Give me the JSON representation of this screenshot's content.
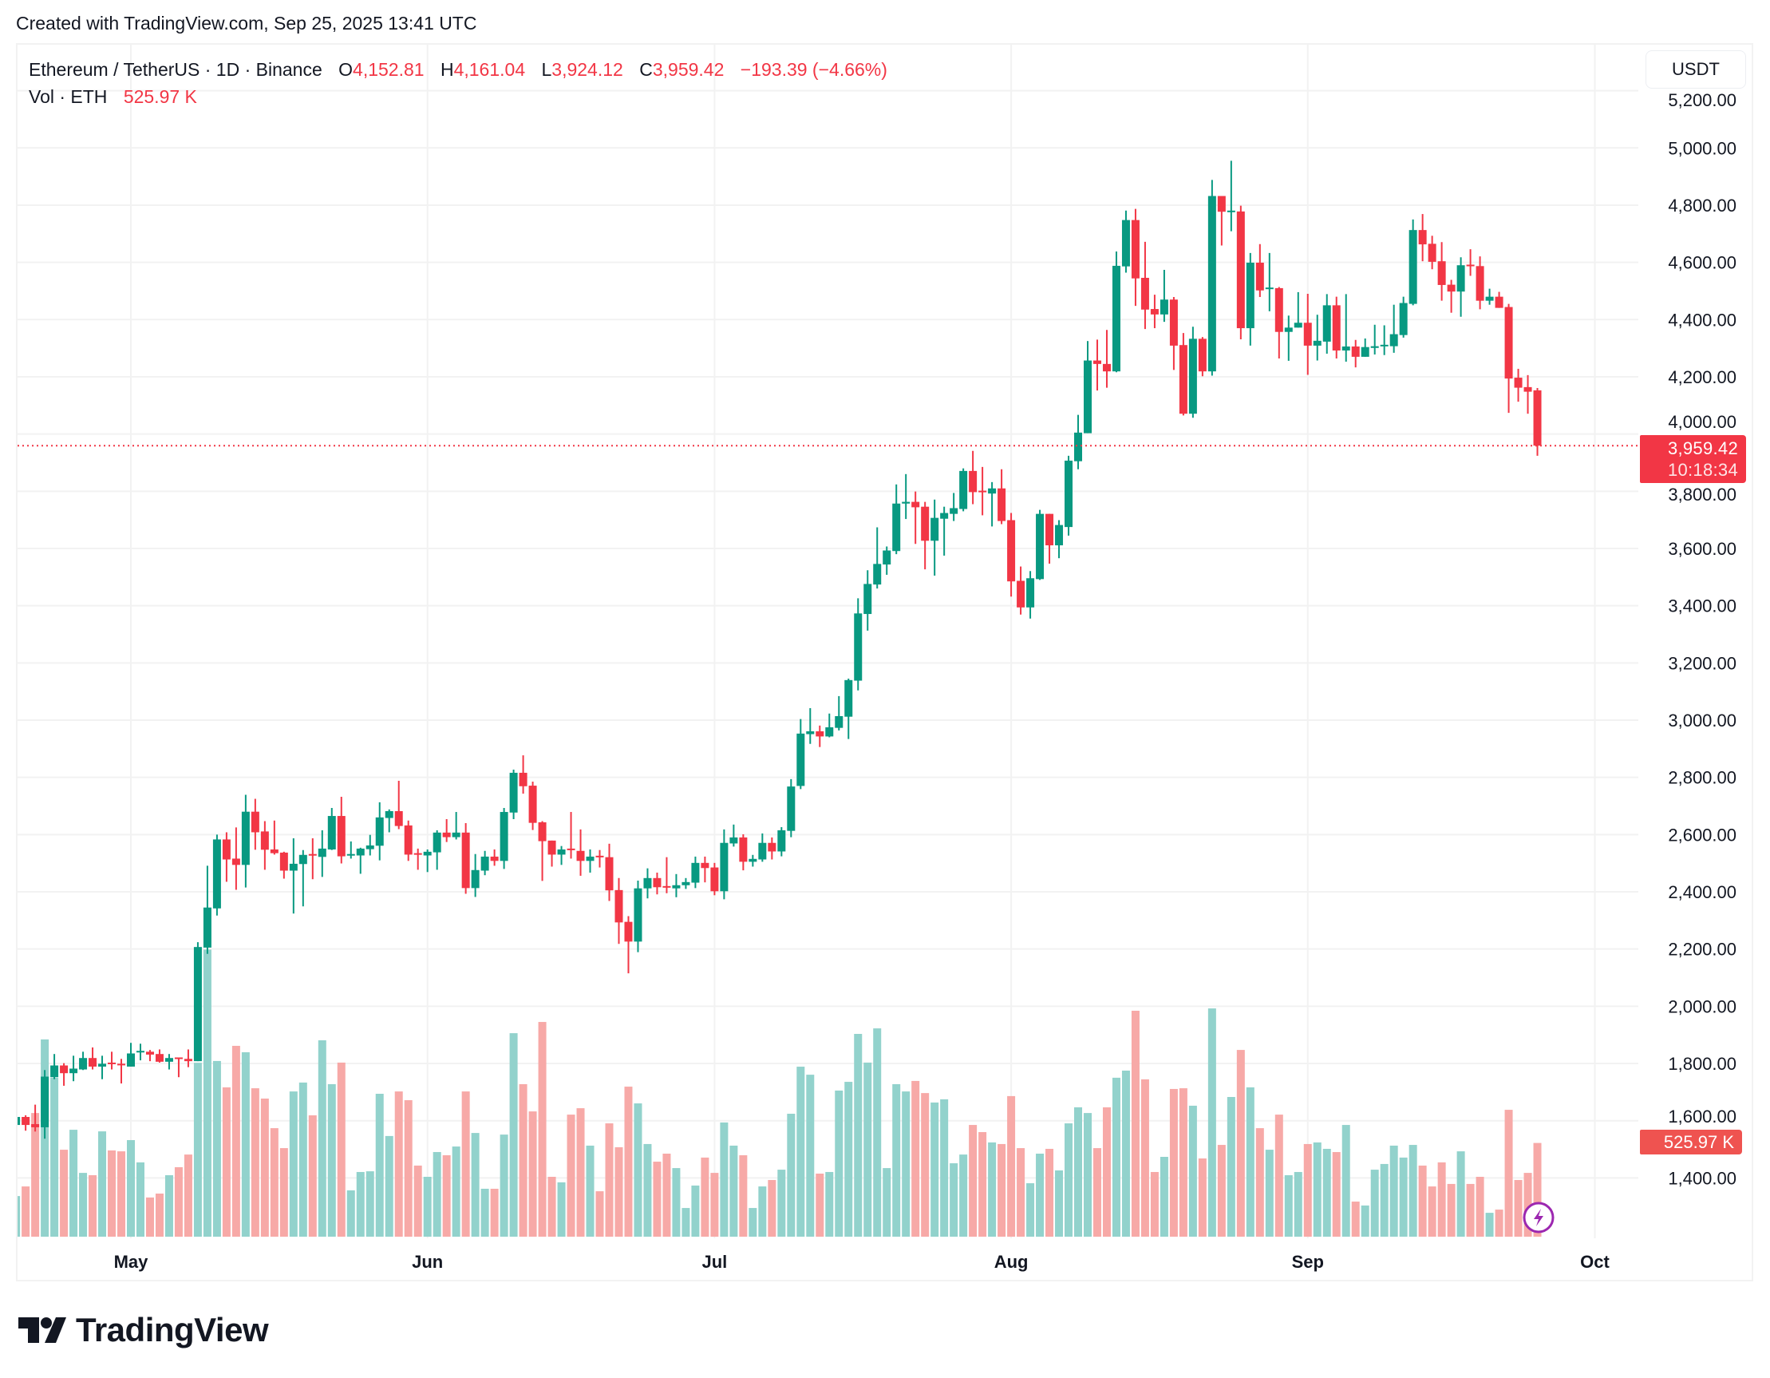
{
  "watermark_text": "Created with TradingView.com, Sep 25, 2025 13:41 UTC",
  "legend": {
    "symbol": "Ethereum / TetherUS · 1D · Binance",
    "open_label": "O",
    "open": "4,152.81",
    "high_label": "H",
    "high": "4,161.04",
    "low_label": "L",
    "low": "3,924.12",
    "close_label": "C",
    "close": "3,959.42",
    "change": "−193.39 (−4.66%)",
    "volume_label": "Vol · ETH",
    "volume": "525.97 K"
  },
  "currency_button": "USDT",
  "last_price": {
    "price": "3,959.42",
    "countdown": "10:18:34",
    "value": 3959.42
  },
  "volume_tag": "525.97 K",
  "logo_text": "TradingView",
  "icons": {
    "lightning": "lightning-bolt-icon",
    "logo": "tradingview-logo-icon"
  },
  "colors": {
    "up": "#089981",
    "down": "#F23645",
    "volume_up": "#92d2cc",
    "volume_down": "#f7a9a7",
    "last_price": "#F23645",
    "volume_tag": "#EF5350",
    "lightning": "#9C27B0"
  },
  "chart_data": {
    "type": "candlestick",
    "title": "",
    "interval": "1D",
    "y_ticks": [
      5200,
      5000,
      4800,
      4600,
      4400,
      4200,
      4000,
      3800,
      3600,
      3400,
      3200,
      3000,
      2800,
      2600,
      2400,
      2200,
      2000,
      1800,
      1600,
      1400
    ],
    "y_tick_labels": [
      "5,200.00",
      "5,000.00",
      "4,800.00",
      "4,600.00",
      "4,400.00",
      "4,200.00",
      "4,000.00",
      "3,800.00",
      "3,600.00",
      "3,400.00",
      "3,200.00",
      "3,000.00",
      "2,800.00",
      "2,600.00",
      "2,400.00",
      "2,200.00",
      "2,000.00",
      "1,800.00",
      "1,600.00",
      "1,400.00"
    ],
    "x_ticks": [
      {
        "label": "May",
        "date": "2025-05-01"
      },
      {
        "label": "Jun",
        "date": "2025-06-01"
      },
      {
        "label": "Jul",
        "date": "2025-07-01"
      },
      {
        "label": "Aug",
        "date": "2025-08-01"
      },
      {
        "label": "Sep",
        "date": "2025-09-01"
      },
      {
        "label": "Oct",
        "date": "2025-10-01"
      }
    ],
    "grid": true,
    "volume_unit": "K ETH",
    "candle_fields": [
      "date",
      "open",
      "high",
      "low",
      "close",
      "volume"
    ],
    "candles": [
      [
        "2025-04-19",
        1585,
        1620,
        1580,
        1613,
        228
      ],
      [
        "2025-04-20",
        1613,
        1619,
        1565,
        1585,
        282
      ],
      [
        "2025-04-21",
        1588,
        1656,
        1562,
        1577,
        694
      ],
      [
        "2025-04-22",
        1577,
        1777,
        1537,
        1754,
        1107
      ],
      [
        "2025-04-23",
        1752,
        1833,
        1745,
        1793,
        892
      ],
      [
        "2025-04-24",
        1793,
        1801,
        1722,
        1766,
        488
      ],
      [
        "2025-04-25",
        1766,
        1827,
        1738,
        1782,
        600
      ],
      [
        "2025-04-26",
        1779,
        1841,
        1777,
        1819,
        358
      ],
      [
        "2025-04-27",
        1819,
        1856,
        1779,
        1789,
        345
      ],
      [
        "2025-04-28",
        1789,
        1827,
        1745,
        1799,
        591
      ],
      [
        "2025-04-29",
        1803,
        1841,
        1779,
        1799,
        484
      ],
      [
        "2025-04-30",
        1799,
        1816,
        1730,
        1794,
        479
      ],
      [
        "2025-05-01",
        1789,
        1872,
        1789,
        1835,
        542
      ],
      [
        "2025-05-02",
        1839,
        1869,
        1811,
        1844,
        417
      ],
      [
        "2025-05-03",
        1841,
        1847,
        1808,
        1831,
        220
      ],
      [
        "2025-05-04",
        1833,
        1849,
        1803,
        1806,
        242
      ],
      [
        "2025-05-05",
        1806,
        1833,
        1779,
        1819,
        345
      ],
      [
        "2025-05-06",
        1821,
        1821,
        1752,
        1817,
        390
      ],
      [
        "2025-05-07",
        1816,
        1849,
        1787,
        1808,
        461
      ],
      [
        "2025-05-08",
        1808,
        2224,
        1808,
        2207,
        976
      ],
      [
        "2025-05-09",
        2205,
        2491,
        2183,
        2345,
        1611
      ],
      [
        "2025-05-10",
        2342,
        2600,
        2317,
        2583,
        986
      ],
      [
        "2025-05-11",
        2583,
        2608,
        2435,
        2513,
        838
      ],
      [
        "2025-05-12",
        2516,
        2625,
        2407,
        2494,
        1071
      ],
      [
        "2025-05-13",
        2494,
        2739,
        2415,
        2680,
        1035
      ],
      [
        "2025-05-14",
        2680,
        2725,
        2547,
        2608,
        833
      ],
      [
        "2025-05-15",
        2611,
        2647,
        2477,
        2547,
        775
      ],
      [
        "2025-05-16",
        2548,
        2649,
        2530,
        2535,
        609
      ],
      [
        "2025-05-17",
        2537,
        2540,
        2446,
        2474,
        497
      ],
      [
        "2025-05-18",
        2474,
        2587,
        2324,
        2498,
        815
      ],
      [
        "2025-05-19",
        2497,
        2546,
        2349,
        2529,
        865
      ],
      [
        "2025-05-20",
        2532,
        2587,
        2444,
        2527,
        681
      ],
      [
        "2025-05-21",
        2522,
        2615,
        2452,
        2551,
        1102
      ],
      [
        "2025-05-22",
        2548,
        2693,
        2546,
        2665,
        856
      ],
      [
        "2025-05-23",
        2665,
        2732,
        2499,
        2524,
        977
      ],
      [
        "2025-05-24",
        2527,
        2576,
        2516,
        2532,
        260
      ],
      [
        "2025-05-25",
        2527,
        2554,
        2463,
        2551,
        363
      ],
      [
        "2025-05-26",
        2549,
        2599,
        2527,
        2562,
        367
      ],
      [
        "2025-05-27",
        2561,
        2713,
        2510,
        2660,
        802
      ],
      [
        "2025-05-28",
        2658,
        2688,
        2608,
        2682,
        565
      ],
      [
        "2025-05-29",
        2682,
        2788,
        2619,
        2630,
        815
      ],
      [
        "2025-05-30",
        2632,
        2649,
        2508,
        2530,
        766
      ],
      [
        "2025-05-31",
        2535,
        2551,
        2477,
        2530,
        399
      ],
      [
        "2025-06-01",
        2527,
        2548,
        2469,
        2540,
        336
      ],
      [
        "2025-06-02",
        2538,
        2615,
        2477,
        2607,
        475
      ],
      [
        "2025-06-03",
        2607,
        2654,
        2574,
        2591,
        457
      ],
      [
        "2025-06-04",
        2591,
        2679,
        2583,
        2607,
        506
      ],
      [
        "2025-06-05",
        2607,
        2640,
        2393,
        2413,
        815
      ],
      [
        "2025-06-06",
        2413,
        2532,
        2382,
        2476,
        582
      ],
      [
        "2025-06-07",
        2474,
        2543,
        2458,
        2523,
        269
      ],
      [
        "2025-06-08",
        2523,
        2548,
        2491,
        2508,
        269
      ],
      [
        "2025-06-09",
        2508,
        2693,
        2480,
        2679,
        573
      ],
      [
        "2025-06-10",
        2677,
        2827,
        2654,
        2816,
        1142
      ],
      [
        "2025-06-11",
        2816,
        2877,
        2743,
        2769,
        856
      ],
      [
        "2025-06-12",
        2771,
        2785,
        2616,
        2641,
        703
      ],
      [
        "2025-06-13",
        2643,
        2647,
        2438,
        2577,
        1205
      ],
      [
        "2025-06-14",
        2579,
        2579,
        2488,
        2530,
        336
      ],
      [
        "2025-06-15",
        2530,
        2560,
        2494,
        2548,
        305
      ],
      [
        "2025-06-16",
        2551,
        2679,
        2516,
        2546,
        685
      ],
      [
        "2025-06-17",
        2543,
        2618,
        2456,
        2508,
        721
      ],
      [
        "2025-06-18",
        2508,
        2548,
        2467,
        2523,
        511
      ],
      [
        "2025-06-19",
        2526,
        2546,
        2485,
        2521,
        255
      ],
      [
        "2025-06-20",
        2521,
        2568,
        2368,
        2405,
        636
      ],
      [
        "2025-06-21",
        2406,
        2448,
        2218,
        2293,
        502
      ],
      [
        "2025-06-22",
        2295,
        2315,
        2115,
        2226,
        842
      ],
      [
        "2025-06-23",
        2226,
        2439,
        2189,
        2412,
        748
      ],
      [
        "2025-06-24",
        2412,
        2482,
        2377,
        2448,
        520
      ],
      [
        "2025-06-25",
        2448,
        2467,
        2391,
        2416,
        421
      ],
      [
        "2025-06-26",
        2420,
        2521,
        2395,
        2415,
        466
      ],
      [
        "2025-06-27",
        2412,
        2462,
        2381,
        2423,
        385
      ],
      [
        "2025-06-28",
        2423,
        2448,
        2410,
        2434,
        161
      ],
      [
        "2025-06-29",
        2432,
        2523,
        2413,
        2501,
        287
      ],
      [
        "2025-06-30",
        2501,
        2523,
        2433,
        2483,
        444
      ],
      [
        "2025-07-01",
        2485,
        2501,
        2388,
        2402,
        358
      ],
      [
        "2025-07-02",
        2402,
        2618,
        2374,
        2571,
        641
      ],
      [
        "2025-07-03",
        2569,
        2635,
        2558,
        2590,
        511
      ],
      [
        "2025-07-04",
        2590,
        2601,
        2475,
        2505,
        457
      ],
      [
        "2025-07-05",
        2505,
        2529,
        2488,
        2515,
        161
      ],
      [
        "2025-07-06",
        2513,
        2604,
        2505,
        2571,
        282
      ],
      [
        "2025-07-07",
        2571,
        2590,
        2513,
        2541,
        318
      ],
      [
        "2025-07-08",
        2541,
        2626,
        2524,
        2615,
        376
      ],
      [
        "2025-07-09",
        2613,
        2794,
        2591,
        2768,
        690
      ],
      [
        "2025-07-10",
        2770,
        3004,
        2759,
        2953,
        954
      ],
      [
        "2025-07-11",
        2951,
        3042,
        2917,
        2961,
        909
      ],
      [
        "2025-07-12",
        2961,
        2981,
        2906,
        2943,
        354
      ],
      [
        "2025-07-13",
        2943,
        3023,
        2940,
        2975,
        363
      ],
      [
        "2025-07-14",
        2973,
        3084,
        2964,
        3014,
        820
      ],
      [
        "2025-07-15",
        3012,
        3145,
        2934,
        3140,
        869
      ],
      [
        "2025-07-16",
        3138,
        3426,
        3104,
        3373,
        1138
      ],
      [
        "2025-07-17",
        3371,
        3524,
        3313,
        3476,
        977
      ],
      [
        "2025-07-18",
        3474,
        3674,
        3460,
        3546,
        1169
      ],
      [
        "2025-07-19",
        3544,
        3607,
        3508,
        3593,
        385
      ],
      [
        "2025-07-20",
        3591,
        3824,
        3580,
        3757,
        856
      ],
      [
        "2025-07-21",
        3757,
        3860,
        3703,
        3763,
        815
      ],
      [
        "2025-07-22",
        3763,
        3799,
        3616,
        3744,
        874
      ],
      [
        "2025-07-23",
        3746,
        3763,
        3527,
        3627,
        806
      ],
      [
        "2025-07-24",
        3627,
        3771,
        3505,
        3707,
        753
      ],
      [
        "2025-07-25",
        3704,
        3746,
        3575,
        3724,
        771
      ],
      [
        "2025-07-26",
        3721,
        3794,
        3696,
        3741,
        412
      ],
      [
        "2025-07-27",
        3738,
        3880,
        3730,
        3871,
        461
      ],
      [
        "2025-07-28",
        3871,
        3941,
        3755,
        3797,
        627
      ],
      [
        "2025-07-29",
        3802,
        3885,
        3716,
        3797,
        587
      ],
      [
        "2025-07-30",
        3792,
        3832,
        3677,
        3810,
        529
      ],
      [
        "2025-07-31",
        3810,
        3877,
        3685,
        3696,
        520
      ],
      [
        "2025-08-01",
        3699,
        3724,
        3432,
        3485,
        789
      ],
      [
        "2025-08-02",
        3487,
        3537,
        3369,
        3394,
        497
      ],
      [
        "2025-08-03",
        3394,
        3521,
        3355,
        3496,
        300
      ],
      [
        "2025-08-04",
        3493,
        3735,
        3490,
        3721,
        466
      ],
      [
        "2025-08-05",
        3721,
        3721,
        3547,
        3611,
        493
      ],
      [
        "2025-08-06",
        3611,
        3699,
        3566,
        3682,
        372
      ],
      [
        "2025-08-07",
        3675,
        3924,
        3645,
        3907,
        636
      ],
      [
        "2025-08-08",
        3905,
        4067,
        3877,
        4005,
        726
      ],
      [
        "2025-08-09",
        4003,
        4325,
        4003,
        4257,
        694
      ],
      [
        "2025-08-10",
        4257,
        4330,
        4152,
        4245,
        497
      ],
      [
        "2025-08-11",
        4245,
        4364,
        4162,
        4219,
        726
      ],
      [
        "2025-08-12",
        4219,
        4638,
        4216,
        4588,
        892
      ],
      [
        "2025-08-13",
        4586,
        4781,
        4564,
        4748,
        932
      ],
      [
        "2025-08-14",
        4748,
        4787,
        4448,
        4544,
        1268
      ],
      [
        "2025-08-15",
        4546,
        4672,
        4367,
        4435,
        883
      ],
      [
        "2025-08-16",
        4437,
        4487,
        4370,
        4418,
        363
      ],
      [
        "2025-08-17",
        4418,
        4574,
        4392,
        4470,
        448
      ],
      [
        "2025-08-18",
        4470,
        4479,
        4224,
        4309,
        829
      ],
      [
        "2025-08-19",
        4311,
        4353,
        4065,
        4071,
        833
      ],
      [
        "2025-08-20",
        4071,
        4375,
        4057,
        4333,
        735
      ],
      [
        "2025-08-21",
        4333,
        4339,
        4202,
        4219,
        439
      ],
      [
        "2025-08-22",
        4219,
        4888,
        4204,
        4832,
        1281
      ],
      [
        "2025-08-23",
        4832,
        4832,
        4659,
        4777,
        515
      ],
      [
        "2025-08-24",
        4777,
        4955,
        4709,
        4781,
        784
      ],
      [
        "2025-08-25",
        4778,
        4798,
        4331,
        4370,
        1048
      ],
      [
        "2025-08-26",
        4370,
        4633,
        4309,
        4599,
        838
      ],
      [
        "2025-08-27",
        4599,
        4664,
        4479,
        4502,
        609
      ],
      [
        "2025-08-28",
        4508,
        4633,
        4429,
        4512,
        488
      ],
      [
        "2025-08-29",
        4510,
        4514,
        4264,
        4357,
        685
      ],
      [
        "2025-08-30",
        4357,
        4414,
        4256,
        4372,
        345
      ],
      [
        "2025-08-31",
        4372,
        4496,
        4372,
        4389,
        363
      ],
      [
        "2025-09-01",
        4389,
        4490,
        4207,
        4309,
        520
      ],
      [
        "2025-09-02",
        4309,
        4417,
        4257,
        4326,
        529
      ],
      [
        "2025-09-03",
        4323,
        4489,
        4281,
        4450,
        493
      ],
      [
        "2025-09-04",
        4450,
        4480,
        4264,
        4292,
        475
      ],
      [
        "2025-09-05",
        4292,
        4489,
        4253,
        4306,
        627
      ],
      [
        "2025-09-06",
        4306,
        4329,
        4233,
        4270,
        197
      ],
      [
        "2025-09-07",
        4270,
        4334,
        4270,
        4304,
        175
      ],
      [
        "2025-09-08",
        4301,
        4382,
        4278,
        4307,
        376
      ],
      [
        "2025-09-09",
        4307,
        4380,
        4276,
        4312,
        408
      ],
      [
        "2025-09-10",
        4307,
        4452,
        4284,
        4349,
        511
      ],
      [
        "2025-09-11",
        4346,
        4480,
        4337,
        4458,
        444
      ],
      [
        "2025-09-12",
        4455,
        4750,
        4450,
        4713,
        515
      ],
      [
        "2025-09-13",
        4713,
        4769,
        4604,
        4663,
        399
      ],
      [
        "2025-09-14",
        4665,
        4693,
        4576,
        4602,
        282
      ],
      [
        "2025-09-15",
        4604,
        4671,
        4466,
        4521,
        417
      ],
      [
        "2025-09-16",
        4522,
        4539,
        4424,
        4498,
        296
      ],
      [
        "2025-09-17",
        4498,
        4618,
        4410,
        4590,
        479
      ],
      [
        "2025-09-18",
        4592,
        4646,
        4553,
        4587,
        296
      ],
      [
        "2025-09-19",
        4587,
        4621,
        4436,
        4466,
        336
      ],
      [
        "2025-09-20",
        4466,
        4508,
        4452,
        4480,
        134
      ],
      [
        "2025-09-21",
        4480,
        4497,
        4441,
        4441,
        152
      ],
      [
        "2025-09-22",
        4444,
        4455,
        4074,
        4194,
        712
      ],
      [
        "2025-09-23",
        4197,
        4228,
        4113,
        4162,
        318
      ],
      [
        "2025-09-24",
        4164,
        4206,
        4071,
        4148,
        358
      ],
      [
        "2025-09-25",
        4152.81,
        4161.04,
        3924.12,
        3959.42,
        525.97
      ]
    ]
  }
}
